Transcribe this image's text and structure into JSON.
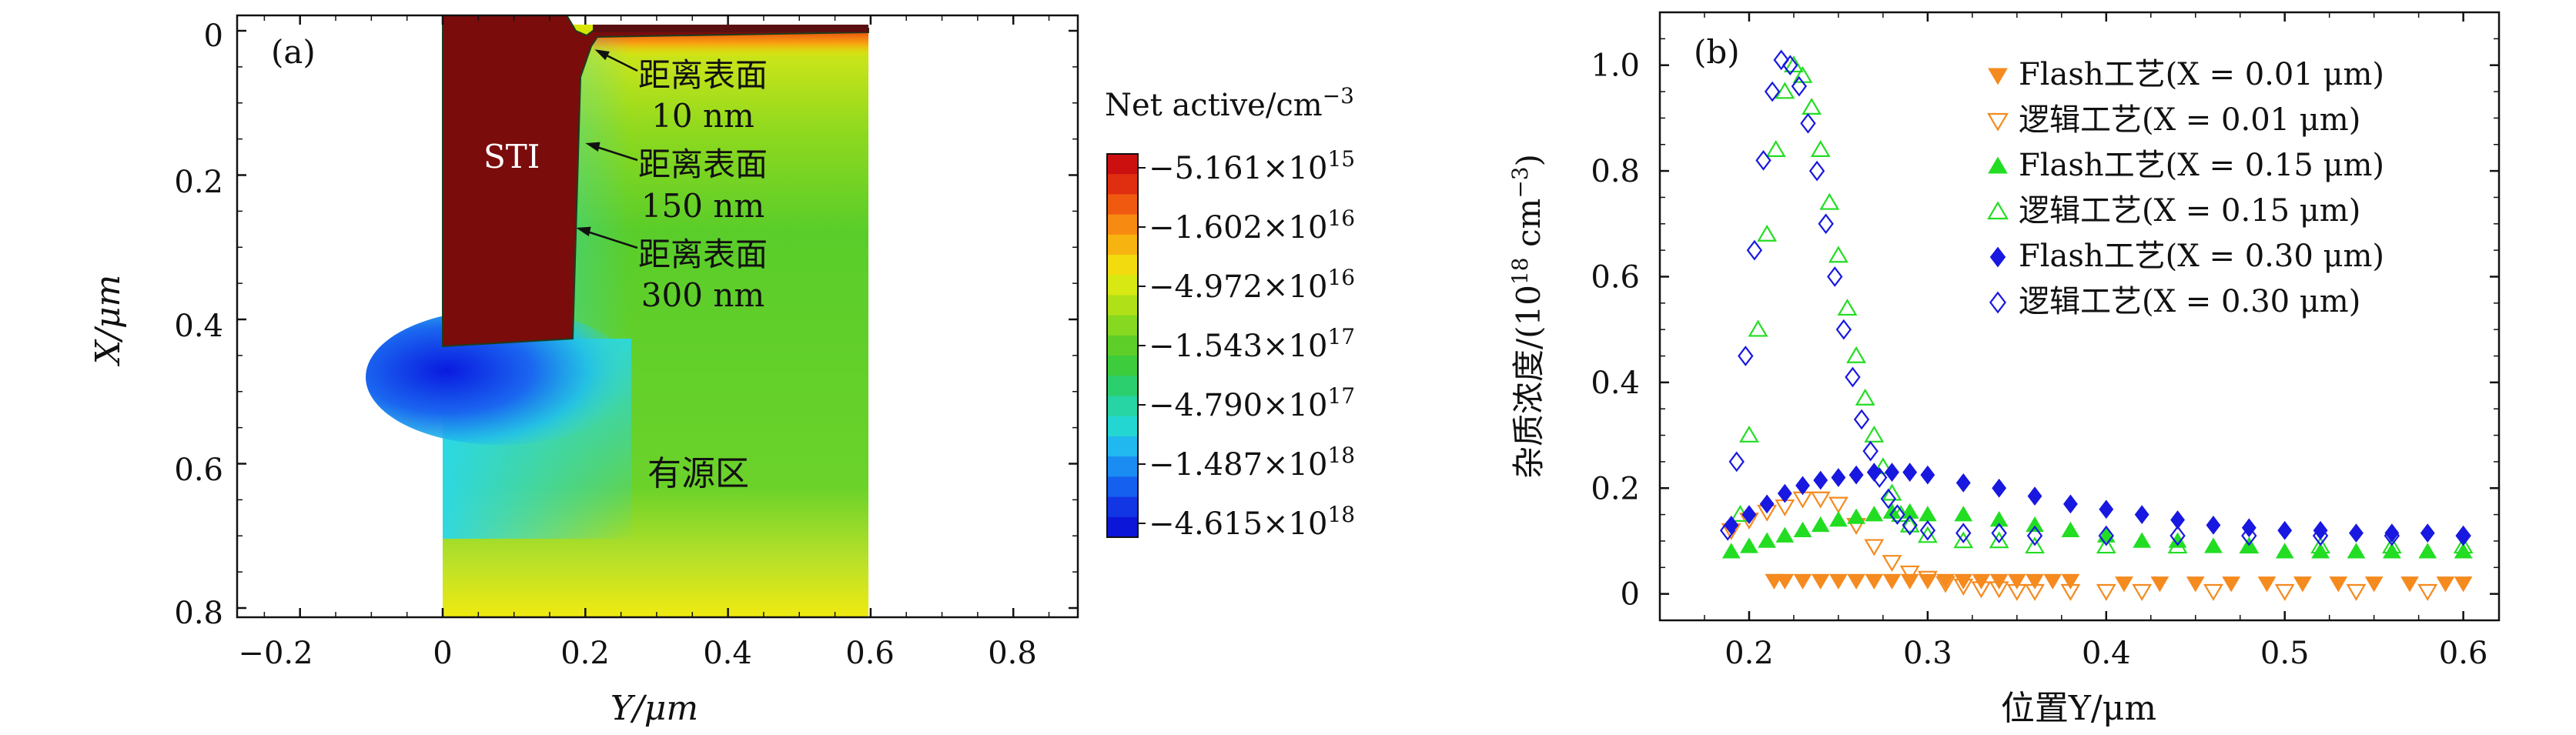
{
  "panel_a": {
    "label": "(a)",
    "sti_label": "STI",
    "region_label": "有源区",
    "annotations": [
      {
        "line1": "距离表面",
        "line2": "10 nm"
      },
      {
        "line1": "距离表面",
        "line2": "150 nm"
      },
      {
        "line1": "距离表面",
        "line2": "300 nm"
      }
    ],
    "xlabel": "Y/μm",
    "ylabel": "X/μm",
    "xticks": [
      "−0.2",
      "0",
      "0.2",
      "0.4",
      "0.6",
      "0.8"
    ],
    "yticks": [
      "0",
      "0.2",
      "0.4",
      "0.6",
      "0.8"
    ],
    "colorbar_title": "Net active/cm",
    "colorbar_title_exp": "−3",
    "colorbar_labels": [
      {
        "mant": "−5.161×10",
        "exp": "15"
      },
      {
        "mant": "−1.602×10",
        "exp": "16"
      },
      {
        "mant": "−4.972×10",
        "exp": "16"
      },
      {
        "mant": "−1.543×10",
        "exp": "17"
      },
      {
        "mant": "−4.790×10",
        "exp": "17"
      },
      {
        "mant": "−1.487×10",
        "exp": "18"
      },
      {
        "mant": "−4.615×10",
        "exp": "18"
      }
    ]
  },
  "chart_data": [
    {
      "type": "heatmap",
      "panel": "(a)",
      "xlabel": "Y/μm",
      "ylabel": "X/μm",
      "xlim": [
        -0.29,
        0.9
      ],
      "ylim": [
        0.81,
        -0.03
      ],
      "regions": [
        "STI",
        "有源区"
      ],
      "colorbar_title": "Net active/cm^-3",
      "colorbar_values": [
        -5161000000000000.0,
        -1.602e+16,
        -4.972e+16,
        -1.543e+17,
        -4.79e+17,
        -1.487e+18,
        -4.615e+18
      ],
      "annotations": [
        "距离表面 10 nm",
        "距离表面 150 nm",
        "距离表面 300 nm"
      ]
    },
    {
      "type": "scatter",
      "panel": "(b)",
      "xlabel": "位置Y/μm",
      "ylabel": "杂质浓度/(10^18 cm^-3)",
      "xlim": [
        0.15,
        0.62
      ],
      "ylim": [
        -0.05,
        1.1
      ],
      "x_ticks": [
        0.2,
        0.3,
        0.4,
        0.5,
        0.6
      ],
      "y_ticks": [
        0,
        0.2,
        0.4,
        0.6,
        0.8,
        1.0
      ],
      "legend_position": "top-right",
      "series": [
        {
          "name": "Flash工艺(X = 0.01 μm)",
          "color": "#f58a1f",
          "marker": "triangle-down-filled",
          "x": [
            0.214,
            0.22,
            0.23,
            0.24,
            0.25,
            0.26,
            0.27,
            0.28,
            0.29,
            0.3,
            0.31,
            0.32,
            0.33,
            0.34,
            0.35,
            0.36,
            0.37,
            0.38,
            0.41,
            0.43,
            0.45,
            0.47,
            0.49,
            0.51,
            0.53,
            0.55,
            0.57,
            0.59,
            0.6
          ],
          "y": [
            0.025,
            0.025,
            0.025,
            0.025,
            0.025,
            0.025,
            0.025,
            0.025,
            0.025,
            0.025,
            0.025,
            0.025,
            0.025,
            0.025,
            0.025,
            0.025,
            0.025,
            0.025,
            0.02,
            0.02,
            0.02,
            0.02,
            0.02,
            0.02,
            0.02,
            0.02,
            0.02,
            0.02,
            0.02
          ]
        },
        {
          "name": "逻辑工艺(X = 0.01 μm)",
          "color": "#f58a1f",
          "marker": "triangle-down-open",
          "x": [
            0.19,
            0.2,
            0.21,
            0.22,
            0.23,
            0.24,
            0.25,
            0.26,
            0.27,
            0.28,
            0.29,
            0.3,
            0.31,
            0.32,
            0.33,
            0.34,
            0.35,
            0.36,
            0.38,
            0.4,
            0.42,
            0.46,
            0.5,
            0.54,
            0.58
          ],
          "y": [
            0.12,
            0.14,
            0.155,
            0.165,
            0.18,
            0.18,
            0.17,
            0.13,
            0.09,
            0.06,
            0.04,
            0.03,
            0.02,
            0.015,
            0.01,
            0.01,
            0.005,
            0.005,
            0.005,
            0.005,
            0.005,
            0.005,
            0.005,
            0.005,
            0.005
          ]
        },
        {
          "name": "Flash工艺(X = 0.15 μm)",
          "color": "#22dd22",
          "marker": "triangle-up-filled",
          "x": [
            0.19,
            0.2,
            0.21,
            0.22,
            0.23,
            0.24,
            0.25,
            0.26,
            0.27,
            0.28,
            0.29,
            0.3,
            0.32,
            0.34,
            0.36,
            0.38,
            0.4,
            0.42,
            0.44,
            0.46,
            0.48,
            0.5,
            0.52,
            0.54,
            0.56,
            0.58,
            0.6
          ],
          "y": [
            0.08,
            0.09,
            0.1,
            0.11,
            0.12,
            0.13,
            0.14,
            0.145,
            0.15,
            0.155,
            0.155,
            0.15,
            0.15,
            0.14,
            0.13,
            0.12,
            0.11,
            0.1,
            0.1,
            0.09,
            0.09,
            0.08,
            0.08,
            0.08,
            0.08,
            0.08,
            0.08
          ]
        },
        {
          "name": "逻辑工艺(X = 0.15 μm)",
          "color": "#22dd22",
          "marker": "triangle-up-open",
          "x": [
            0.195,
            0.2,
            0.205,
            0.21,
            0.215,
            0.22,
            0.225,
            0.23,
            0.235,
            0.24,
            0.245,
            0.25,
            0.255,
            0.26,
            0.265,
            0.27,
            0.275,
            0.28,
            0.285,
            0.29,
            0.3,
            0.32,
            0.34,
            0.36,
            0.4,
            0.44,
            0.48,
            0.52,
            0.56,
            0.6
          ],
          "y": [
            0.15,
            0.3,
            0.5,
            0.68,
            0.84,
            0.95,
            1.0,
            0.98,
            0.92,
            0.84,
            0.74,
            0.64,
            0.54,
            0.45,
            0.37,
            0.3,
            0.24,
            0.19,
            0.15,
            0.13,
            0.11,
            0.1,
            0.1,
            0.09,
            0.09,
            0.09,
            0.09,
            0.09,
            0.09,
            0.09
          ]
        },
        {
          "name": "Flash工艺(X = 0.30 μm)",
          "color": "#1818e0",
          "marker": "diamond-filled",
          "x": [
            0.19,
            0.2,
            0.21,
            0.22,
            0.23,
            0.24,
            0.25,
            0.26,
            0.27,
            0.28,
            0.29,
            0.3,
            0.32,
            0.34,
            0.36,
            0.38,
            0.4,
            0.42,
            0.44,
            0.46,
            0.48,
            0.5,
            0.52,
            0.54,
            0.56,
            0.58,
            0.6
          ],
          "y": [
            0.13,
            0.15,
            0.17,
            0.19,
            0.205,
            0.215,
            0.22,
            0.225,
            0.23,
            0.23,
            0.23,
            0.225,
            0.21,
            0.2,
            0.185,
            0.17,
            0.16,
            0.15,
            0.14,
            0.13,
            0.125,
            0.12,
            0.12,
            0.115,
            0.115,
            0.115,
            0.11
          ]
        },
        {
          "name": "逻辑工艺(X = 0.30 μm)",
          "color": "#1818e0",
          "marker": "diamond-open",
          "x": [
            0.188,
            0.193,
            0.198,
            0.203,
            0.208,
            0.213,
            0.218,
            0.223,
            0.228,
            0.233,
            0.238,
            0.243,
            0.248,
            0.253,
            0.258,
            0.263,
            0.268,
            0.273,
            0.278,
            0.283,
            0.29,
            0.3,
            0.32,
            0.34,
            0.36,
            0.4,
            0.44,
            0.48,
            0.52,
            0.56,
            0.6
          ],
          "y": [
            0.12,
            0.25,
            0.45,
            0.65,
            0.82,
            0.95,
            1.01,
            1.0,
            0.96,
            0.89,
            0.8,
            0.7,
            0.6,
            0.5,
            0.41,
            0.33,
            0.27,
            0.22,
            0.18,
            0.15,
            0.13,
            0.12,
            0.115,
            0.115,
            0.11,
            0.11,
            0.11,
            0.11,
            0.11,
            0.11,
            0.11
          ]
        }
      ]
    }
  ]
}
